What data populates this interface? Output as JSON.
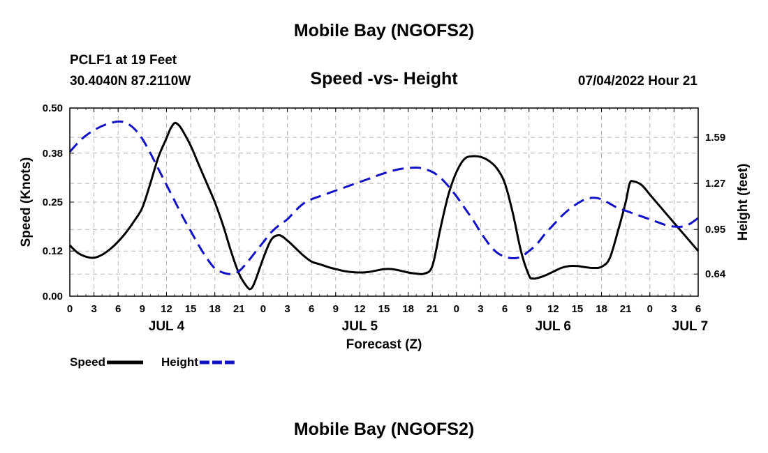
{
  "page": {
    "top_title": "Mobile Bay (NGOFS2)",
    "bottom_title": "Mobile Bay (NGOFS2)",
    "station": "PCLF1 at 19 Feet",
    "coords": "30.4040N  87.2110W",
    "datetime": "07/04/2022 Hour 21"
  },
  "chart_data": {
    "type": "line",
    "title": "Speed -vs- Height",
    "xlabel": "Forecast (Z)",
    "ylabel": "Speed (Knots)",
    "y2label": "Height (feet)",
    "x_unit": "hours since JUL 4 00Z",
    "xlim": [
      0,
      78
    ],
    "ylim": [
      0,
      0.5
    ],
    "y2lim": [
      0.486,
      1.794
    ],
    "x_ticks": [
      0,
      3,
      6,
      9,
      12,
      15,
      18,
      21,
      24,
      27,
      30,
      33,
      36,
      39,
      42,
      45,
      48,
      51,
      54,
      57,
      60,
      63,
      66,
      69,
      72,
      75,
      78
    ],
    "x_tick_labels": [
      "0",
      "3",
      "6",
      "9",
      "12",
      "15",
      "18",
      "21",
      "0",
      "3",
      "6",
      "9",
      "12",
      "15",
      "18",
      "21",
      "0",
      "3",
      "6",
      "9",
      "12",
      "15",
      "18",
      "21",
      "0",
      "3",
      "6"
    ],
    "day_labels": [
      {
        "x": 12,
        "label": "JUL 4"
      },
      {
        "x": 36,
        "label": "JUL 5"
      },
      {
        "x": 60,
        "label": "JUL 6"
      },
      {
        "x": 77,
        "label": "JUL 7"
      }
    ],
    "y_ticks": [
      0.0,
      0.12,
      0.25,
      0.38,
      0.5
    ],
    "y_tick_labels": [
      "0.00",
      "0.12",
      "0.25",
      "0.38",
      "0.50"
    ],
    "y2_ticks": [
      0.64,
      0.95,
      1.27,
      1.59
    ],
    "y2_tick_labels": [
      "0.64",
      "0.95",
      "1.27",
      "1.59"
    ],
    "grid": true,
    "legend_position": "bottom-left",
    "series": [
      {
        "name": "Speed",
        "axis": "left",
        "color": "#000000",
        "dash": "solid",
        "x": [
          0,
          1,
          2,
          3,
          4,
          5,
          6,
          7,
          8,
          9,
          10,
          11,
          12,
          12.5,
          13,
          13.5,
          14,
          15,
          16,
          17,
          18,
          19,
          20,
          21,
          22,
          22.5,
          23,
          24,
          25,
          26,
          27,
          28,
          29,
          30,
          31,
          32,
          33,
          34,
          35,
          36,
          37,
          38,
          39,
          40,
          41,
          42,
          43,
          44,
          45,
          46,
          47,
          48,
          49,
          50,
          51,
          52,
          53,
          54,
          55,
          56,
          57,
          57.5,
          58,
          59,
          60,
          61,
          62,
          63,
          64,
          65,
          66,
          67,
          68,
          69,
          69.5,
          70,
          71,
          72,
          73,
          74,
          75,
          76,
          77,
          78
        ],
        "values": [
          0.135,
          0.115,
          0.105,
          0.102,
          0.11,
          0.125,
          0.145,
          0.17,
          0.2,
          0.235,
          0.3,
          0.37,
          0.42,
          0.445,
          0.46,
          0.455,
          0.44,
          0.4,
          0.35,
          0.3,
          0.25,
          0.19,
          0.12,
          0.06,
          0.025,
          0.02,
          0.04,
          0.1,
          0.15,
          0.162,
          0.148,
          0.128,
          0.108,
          0.092,
          0.085,
          0.078,
          0.072,
          0.067,
          0.064,
          0.063,
          0.064,
          0.068,
          0.072,
          0.072,
          0.068,
          0.063,
          0.06,
          0.06,
          0.08,
          0.18,
          0.27,
          0.33,
          0.365,
          0.372,
          0.37,
          0.36,
          0.34,
          0.3,
          0.22,
          0.12,
          0.055,
          0.047,
          0.048,
          0.055,
          0.065,
          0.075,
          0.08,
          0.08,
          0.077,
          0.075,
          0.078,
          0.1,
          0.17,
          0.25,
          0.3,
          0.305,
          0.295,
          0.27,
          0.245,
          0.22,
          0.195,
          0.17,
          0.145,
          0.12
        ]
      },
      {
        "name": "Height",
        "axis": "right",
        "color": "#1010c8",
        "dash": "dashed",
        "x": [
          0,
          1.5,
          3,
          4.5,
          6,
          7,
          8,
          9,
          10,
          11,
          12,
          13,
          14,
          15,
          16,
          17,
          18,
          19,
          20,
          21,
          22,
          23,
          24,
          25,
          26,
          27,
          28,
          29,
          30,
          31,
          33,
          35,
          37,
          39,
          41,
          43,
          44,
          45,
          46,
          47,
          48,
          49,
          50,
          51,
          52,
          53,
          54,
          55,
          56,
          57,
          58,
          59,
          60,
          61,
          62,
          63,
          64,
          65,
          66,
          67,
          68,
          69,
          70,
          71,
          72,
          73,
          74,
          75,
          76,
          77,
          78
        ],
        "values": [
          1.49,
          1.58,
          1.64,
          1.68,
          1.7,
          1.69,
          1.65,
          1.58,
          1.48,
          1.37,
          1.26,
          1.15,
          1.04,
          0.94,
          0.84,
          0.75,
          0.68,
          0.65,
          0.64,
          0.66,
          0.72,
          0.79,
          0.86,
          0.93,
          0.98,
          1.02,
          1.08,
          1.13,
          1.16,
          1.18,
          1.22,
          1.26,
          1.3,
          1.34,
          1.37,
          1.38,
          1.37,
          1.35,
          1.31,
          1.25,
          1.18,
          1.1,
          1.02,
          0.93,
          0.85,
          0.79,
          0.76,
          0.75,
          0.76,
          0.8,
          0.85,
          0.92,
          0.98,
          1.04,
          1.09,
          1.13,
          1.16,
          1.17,
          1.16,
          1.13,
          1.1,
          1.08,
          1.06,
          1.04,
          1.02,
          1.0,
          0.98,
          0.97,
          0.97,
          0.99,
          1.03
        ]
      }
    ],
    "legend": [
      {
        "label": "Speed",
        "color": "#000000",
        "dash": "solid"
      },
      {
        "label": "Height",
        "color": "#1010c8",
        "dash": "dashed"
      }
    ]
  }
}
